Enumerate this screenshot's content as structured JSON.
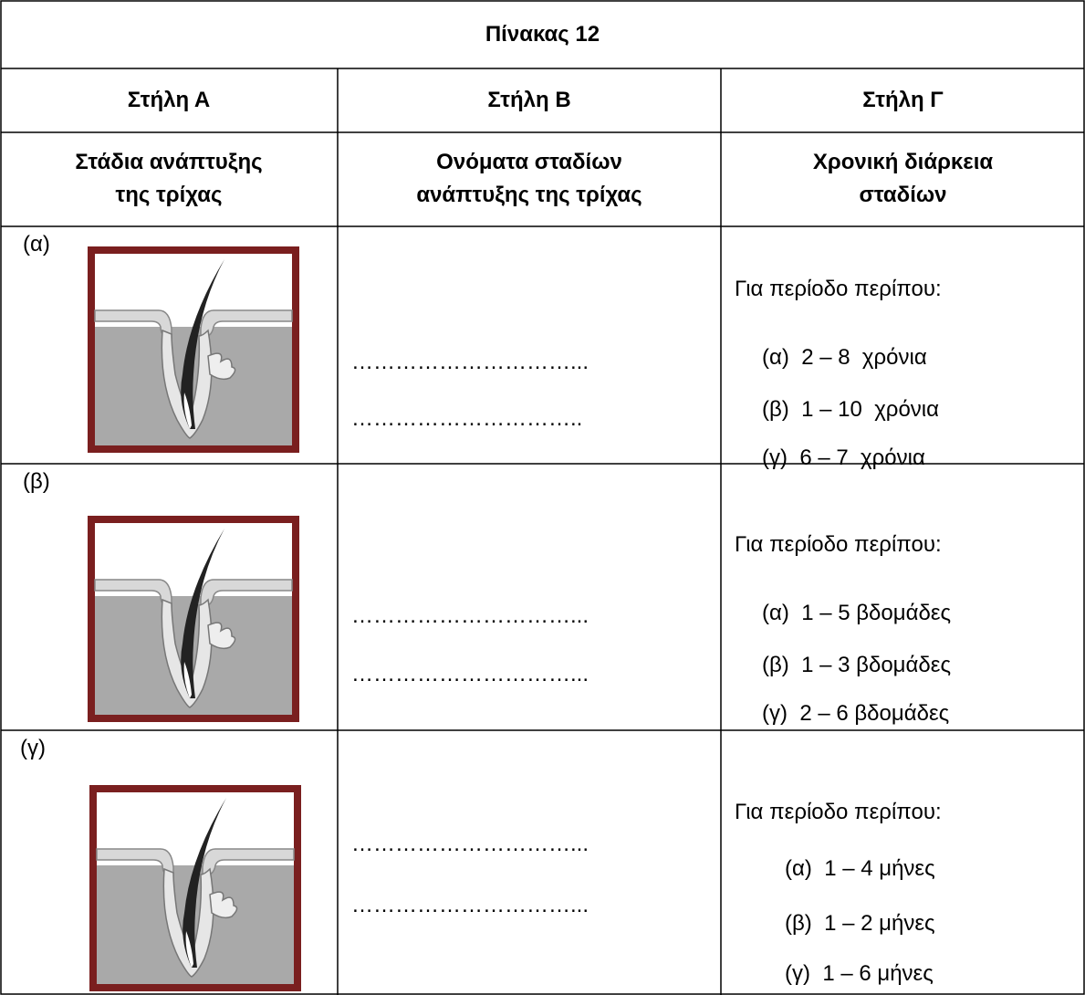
{
  "table": {
    "title": "Πίνακας 12",
    "headers": [
      "Στήλη Α",
      "Στήλη Β",
      "Στήλη Γ"
    ],
    "subheaders": [
      [
        "Στάδια ανάπτυξης",
        "της τρίχας"
      ],
      [
        "Ονόματα σταδίων",
        "ανάπτυξης της τρίχας"
      ],
      [
        "Χρονική διάρκεια",
        "σταδίων"
      ]
    ],
    "rows": [
      {
        "label": "(α)",
        "blanks": [
          "…………………………...",
          "………………………….."
        ],
        "period": "Για περίοδο περίπου:",
        "options": [
          "(α)  2 – 8  χρόνια",
          "(β)  1 – 10  χρόνια",
          "(γ)  6 – 7  χρόνια"
        ]
      },
      {
        "label": "(β)",
        "blanks": [
          "…………………………...",
          "…………………………..."
        ],
        "period": "Για περίοδο περίπου:",
        "options": [
          "(α)  1 – 5 βδομάδες",
          "(β)  1 – 3 βδομάδες",
          "(γ)  2 – 6 βδομάδες"
        ]
      },
      {
        "label": "(γ)",
        "blanks": [
          "…………………………...",
          "…………………………..."
        ],
        "period": "Για περίοδο περίπου:",
        "options": [
          "(α)  1 – 4 μήνες",
          "(β)  1 – 2 μήνες",
          "(γ)  1 – 6 μήνες"
        ]
      }
    ]
  }
}
